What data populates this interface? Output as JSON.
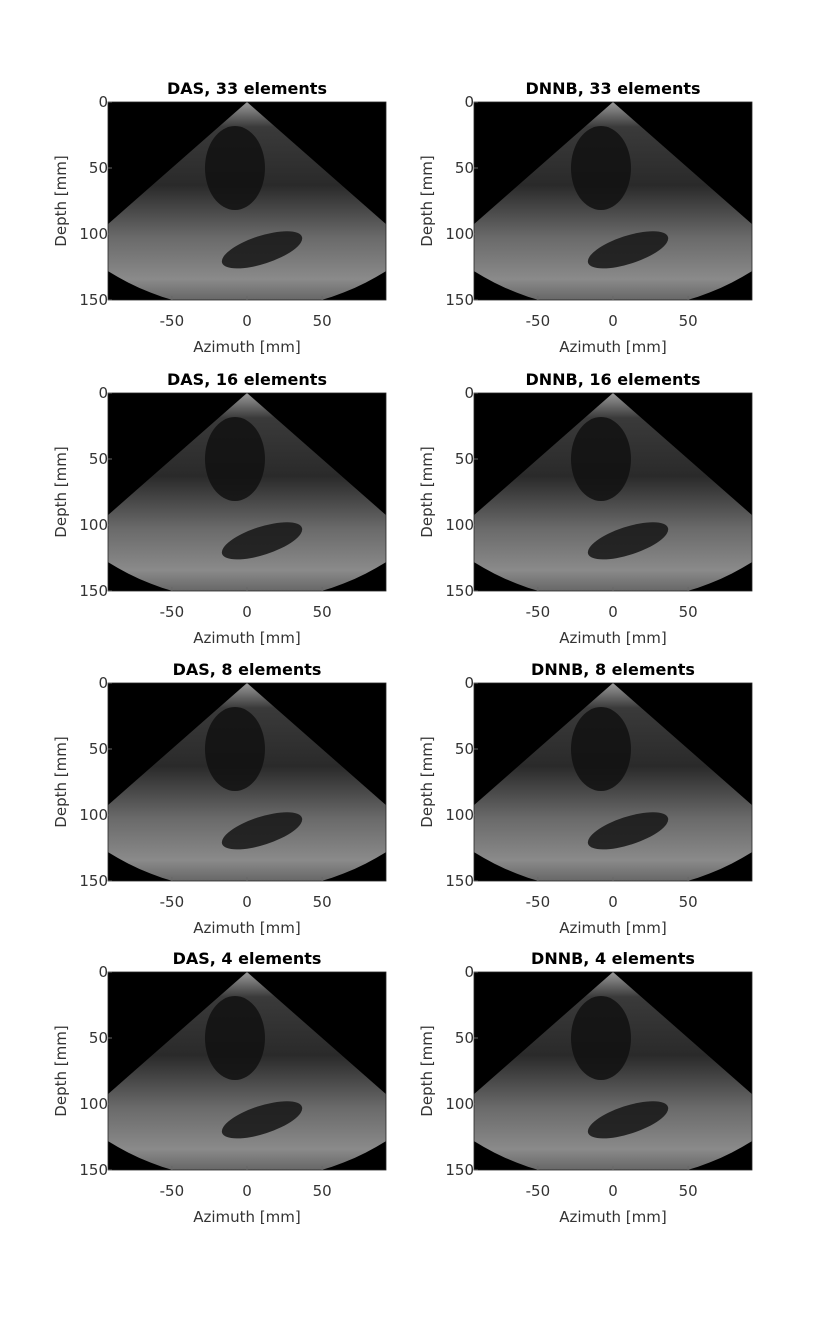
{
  "chart_data": [
    {
      "type": "image",
      "title": "DAS, 33 elements",
      "xlabel": "Azimuth [mm]",
      "ylabel": "Depth [mm]",
      "xlim": [
        -92.5,
        92.5
      ],
      "ylim": [
        0,
        150
      ],
      "xticks": [
        -50,
        0,
        50
      ],
      "yticks": [
        0,
        50,
        100,
        150
      ]
    },
    {
      "type": "image",
      "title": "DNNB, 33 elements",
      "xlabel": "Azimuth [mm]",
      "ylabel": "Depth [mm]",
      "xlim": [
        -92.5,
        92.5
      ],
      "ylim": [
        0,
        150
      ],
      "xticks": [
        -50,
        0,
        50
      ],
      "yticks": [
        0,
        50,
        100,
        150
      ]
    },
    {
      "type": "image",
      "title": "DAS, 16 elements",
      "xlabel": "Azimuth [mm]",
      "ylabel": "Depth [mm]",
      "xlim": [
        -92.5,
        92.5
      ],
      "ylim": [
        0,
        150
      ],
      "xticks": [
        -50,
        0,
        50
      ],
      "yticks": [
        0,
        50,
        100,
        150
      ]
    },
    {
      "type": "image",
      "title": "DNNB, 16 elements",
      "xlabel": "Azimuth [mm]",
      "ylabel": "Depth [mm]",
      "xlim": [
        -92.5,
        92.5
      ],
      "ylim": [
        0,
        150
      ],
      "xticks": [
        -50,
        0,
        50
      ],
      "yticks": [
        0,
        50,
        100,
        150
      ]
    },
    {
      "type": "image",
      "title": "DAS, 8 elements",
      "xlabel": "Azimuth [mm]",
      "ylabel": "Depth [mm]",
      "xlim": [
        -92.5,
        92.5
      ],
      "ylim": [
        0,
        150
      ],
      "xticks": [
        -50,
        0,
        50
      ],
      "yticks": [
        0,
        50,
        100,
        150
      ]
    },
    {
      "type": "image",
      "title": "DNNB, 8 elements",
      "xlabel": "Azimuth [mm]",
      "ylabel": "Depth [mm]",
      "xlim": [
        -92.5,
        92.5
      ],
      "ylim": [
        0,
        150
      ],
      "xticks": [
        -50,
        0,
        50
      ],
      "yticks": [
        0,
        50,
        100,
        150
      ]
    },
    {
      "type": "image",
      "title": "DAS, 4 elements",
      "xlabel": "Azimuth [mm]",
      "ylabel": "Depth [mm]",
      "xlim": [
        -92.5,
        92.5
      ],
      "ylim": [
        0,
        150
      ],
      "xticks": [
        -50,
        0,
        50
      ],
      "yticks": [
        0,
        50,
        100,
        150
      ]
    },
    {
      "type": "image",
      "title": "DNNB, 4 elements",
      "xlabel": "Azimuth [mm]",
      "ylabel": "Depth [mm]",
      "xlim": [
        -92.5,
        92.5
      ],
      "ylim": [
        0,
        150
      ],
      "xticks": [
        -50,
        0,
        50
      ],
      "yticks": [
        0,
        50,
        100,
        150
      ]
    }
  ]
}
